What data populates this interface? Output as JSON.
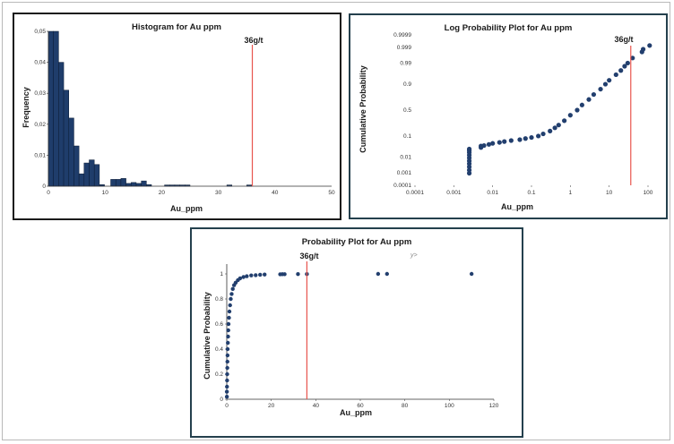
{
  "colors": {
    "bar": "#1f3d6b",
    "bar_edge": "#0a1a33",
    "marker": "#223f6e",
    "threshold_line": "#e8554e",
    "axis": "#333333"
  },
  "chart_data": [
    {
      "type": "bar",
      "title": "Histogram for Au ppm",
      "xlabel": "Au_ppm",
      "ylabel": "Frequency",
      "xlim": [
        0,
        50
      ],
      "ylim": [
        0,
        0.05
      ],
      "x_ticks": [
        "0",
        "10",
        "20",
        "30",
        "40",
        "50"
      ],
      "y_ticks": [
        "0",
        "0,01",
        "0,02",
        "0,03",
        "0,04",
        "0,05"
      ],
      "bin_width": 0.9,
      "bins": [
        {
          "x": 0.0,
          "freq": 0.05
        },
        {
          "x": 0.9,
          "freq": 0.05
        },
        {
          "x": 1.8,
          "freq": 0.04
        },
        {
          "x": 2.7,
          "freq": 0.031
        },
        {
          "x": 3.6,
          "freq": 0.022
        },
        {
          "x": 4.5,
          "freq": 0.013
        },
        {
          "x": 5.4,
          "freq": 0.004
        },
        {
          "x": 6.3,
          "freq": 0.0075
        },
        {
          "x": 7.2,
          "freq": 0.0085
        },
        {
          "x": 8.1,
          "freq": 0.007
        },
        {
          "x": 9.0,
          "freq": 0.0005
        },
        {
          "x": 11.0,
          "freq": 0.0022
        },
        {
          "x": 11.9,
          "freq": 0.0022
        },
        {
          "x": 12.8,
          "freq": 0.0025
        },
        {
          "x": 13.7,
          "freq": 0.0009
        },
        {
          "x": 14.6,
          "freq": 0.0012
        },
        {
          "x": 15.5,
          "freq": 0.0009
        },
        {
          "x": 16.4,
          "freq": 0.0017
        },
        {
          "x": 17.3,
          "freq": 0.0005
        },
        {
          "x": 20.5,
          "freq": 0.0004
        },
        {
          "x": 21.4,
          "freq": 0.0004
        },
        {
          "x": 22.3,
          "freq": 0.0004
        },
        {
          "x": 23.2,
          "freq": 0.0004
        },
        {
          "x": 24.1,
          "freq": 0.0004
        },
        {
          "x": 31.5,
          "freq": 0.0004
        },
        {
          "x": 35.0,
          "freq": 0.0004
        }
      ],
      "threshold": {
        "x": 36,
        "label": "36g/t"
      }
    },
    {
      "type": "scatter",
      "title": "Log Probability Plot for Au ppm",
      "xlabel": "Au_ppm",
      "ylabel": "Cumulative Probability",
      "x_scale": "log",
      "x_ticks": [
        {
          "value": 0.0001,
          "label": "0.0001"
        },
        {
          "value": 0.001,
          "label": "0.001"
        },
        {
          "value": 0.01,
          "label": "0.01"
        },
        {
          "value": 0.1,
          "label": "0.1"
        },
        {
          "value": 1,
          "label": "1"
        },
        {
          "value": 10,
          "label": "10"
        },
        {
          "value": 100,
          "label": "100"
        }
      ],
      "y_scale": "probit",
      "y_ticks": [
        {
          "value": 0.0001,
          "label": "0.0001"
        },
        {
          "value": 0.001,
          "label": "0.001"
        },
        {
          "value": 0.01,
          "label": "0.01"
        },
        {
          "value": 0.1,
          "label": "0.1"
        },
        {
          "value": 0.5,
          "label": "0.5"
        },
        {
          "value": 0.9,
          "label": "0.9"
        },
        {
          "value": 0.99,
          "label": "0.99"
        },
        {
          "value": 0.999,
          "label": "0.999"
        },
        {
          "value": 0.9999,
          "label": "0.9999"
        }
      ],
      "points": [
        [
          0.0025,
          0.0009
        ],
        [
          0.0025,
          0.0015
        ],
        [
          0.0025,
          0.0025
        ],
        [
          0.0025,
          0.004
        ],
        [
          0.0025,
          0.006
        ],
        [
          0.0025,
          0.009
        ],
        [
          0.0025,
          0.013
        ],
        [
          0.0025,
          0.018
        ],
        [
          0.0025,
          0.023
        ],
        [
          0.0025,
          0.027
        ],
        [
          0.005,
          0.032
        ],
        [
          0.005,
          0.038
        ],
        [
          0.006,
          0.04
        ],
        [
          0.008,
          0.045
        ],
        [
          0.01,
          0.05
        ],
        [
          0.015,
          0.055
        ],
        [
          0.02,
          0.06
        ],
        [
          0.03,
          0.066
        ],
        [
          0.05,
          0.072
        ],
        [
          0.07,
          0.08
        ],
        [
          0.1,
          0.088
        ],
        [
          0.15,
          0.1
        ],
        [
          0.2,
          0.12
        ],
        [
          0.3,
          0.15
        ],
        [
          0.4,
          0.19
        ],
        [
          0.5,
          0.23
        ],
        [
          0.7,
          0.3
        ],
        [
          1.0,
          0.4
        ],
        [
          1.5,
          0.5
        ],
        [
          2,
          0.6
        ],
        [
          3,
          0.7
        ],
        [
          4,
          0.78
        ],
        [
          6,
          0.85
        ],
        [
          8,
          0.9
        ],
        [
          10,
          0.93
        ],
        [
          15,
          0.96
        ],
        [
          20,
          0.975
        ],
        [
          25,
          0.985
        ],
        [
          30,
          0.99
        ],
        [
          40,
          0.995
        ],
        [
          70,
          0.998
        ],
        [
          75,
          0.9987
        ],
        [
          110,
          0.9993
        ]
      ],
      "threshold": {
        "x": 36,
        "label": "36g/t"
      }
    },
    {
      "type": "scatter",
      "title": "Probability Plot for Au ppm",
      "xlabel": "Au_ppm",
      "ylabel": "Cumulative Probability",
      "xlim": [
        0,
        120
      ],
      "ylim": [
        0,
        1.05
      ],
      "x_ticks": [
        "0",
        "20",
        "40",
        "60",
        "80",
        "100",
        "120"
      ],
      "y_ticks": [
        "0",
        "0.2",
        "0.4",
        "0.6",
        "0.8",
        "1"
      ],
      "annotation": "y>",
      "points": [
        [
          0.05,
          0.02
        ],
        [
          0.05,
          0.06
        ],
        [
          0.1,
          0.1
        ],
        [
          0.15,
          0.15
        ],
        [
          0.2,
          0.2
        ],
        [
          0.25,
          0.25
        ],
        [
          0.3,
          0.3
        ],
        [
          0.35,
          0.35
        ],
        [
          0.4,
          0.4
        ],
        [
          0.5,
          0.45
        ],
        [
          0.6,
          0.5
        ],
        [
          0.7,
          0.55
        ],
        [
          0.8,
          0.6
        ],
        [
          1.0,
          0.65
        ],
        [
          1.2,
          0.7
        ],
        [
          1.5,
          0.75
        ],
        [
          1.8,
          0.8
        ],
        [
          2.2,
          0.84
        ],
        [
          2.7,
          0.88
        ],
        [
          3.3,
          0.91
        ],
        [
          4,
          0.93
        ],
        [
          5,
          0.95
        ],
        [
          6,
          0.965
        ],
        [
          7.5,
          0.975
        ],
        [
          9,
          0.982
        ],
        [
          11,
          0.988
        ],
        [
          13,
          0.99
        ],
        [
          15,
          0.993
        ],
        [
          17,
          0.995
        ],
        [
          24,
          0.997
        ],
        [
          25,
          0.998
        ],
        [
          26,
          0.998
        ],
        [
          32,
          0.999
        ],
        [
          36,
          0.999
        ],
        [
          68,
          1.0
        ],
        [
          72,
          1.0
        ],
        [
          110,
          1.0
        ]
      ],
      "threshold": {
        "x": 36,
        "label": "36g/t"
      }
    }
  ]
}
